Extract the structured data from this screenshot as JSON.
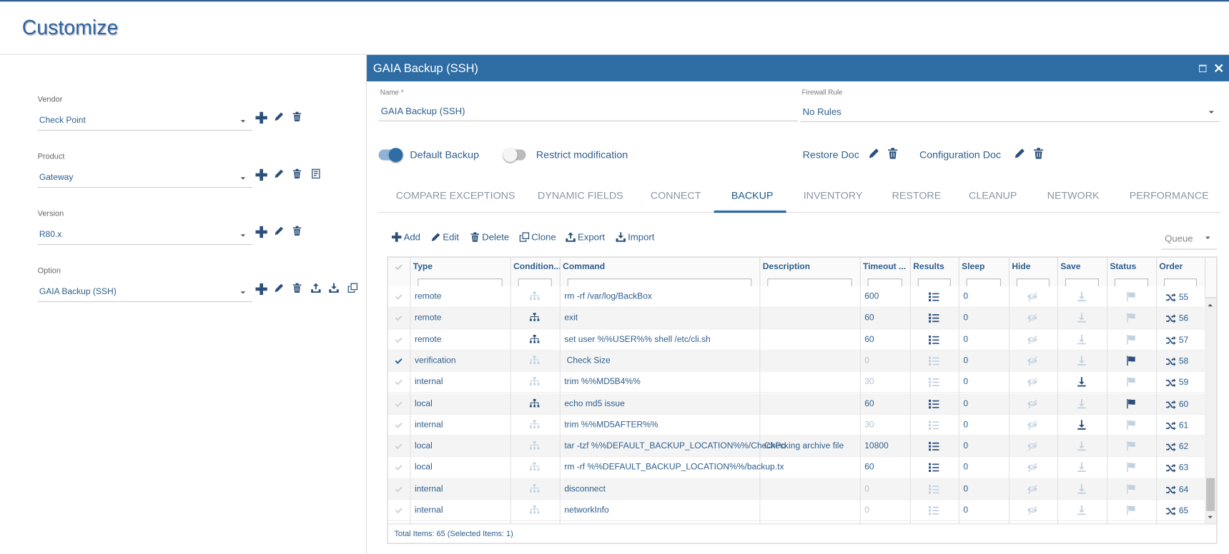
{
  "header": {
    "title": "Customize"
  },
  "sidebar": {
    "fields": [
      {
        "label": "Vendor",
        "value": "Check Point"
      },
      {
        "label": "Product",
        "value": "Gateway"
      },
      {
        "label": "Version",
        "value": "R80.x"
      },
      {
        "label": "Option",
        "value": "GAIA Backup (SSH)"
      }
    ]
  },
  "dialog": {
    "title": "GAIA Backup (SSH)",
    "name_label": "Name *",
    "name_value": "GAIA Backup (SSH)",
    "firewall_label": "Firewall Rule",
    "firewall_value": "No Rules",
    "toggles": [
      {
        "label": "Default Backup",
        "on": true
      },
      {
        "label": "Restrict modification",
        "on": false
      }
    ],
    "docs": [
      "Restore Doc",
      "Configuration Doc"
    ],
    "tabs": [
      "COMPARE EXCEPTIONS",
      "DYNAMIC FIELDS",
      "CONNECT",
      "BACKUP",
      "INVENTORY",
      "RESTORE",
      "CLEANUP",
      "NETWORK",
      "PERFORMANCE"
    ],
    "active_tab": 3,
    "toolbar": [
      "Add",
      "Edit",
      "Delete",
      "Clone",
      "Export",
      "Import"
    ],
    "queue": "Queue"
  },
  "table": {
    "columns": [
      "Type",
      "Condition...",
      "Command",
      "Description",
      "Timeout ...",
      "Results",
      "Sleep",
      "Hide",
      "Save",
      "Status",
      "Order"
    ],
    "rows": [
      {
        "checked": false,
        "type": "remote",
        "condition_active": false,
        "command": "rm -rf /var/log/BackBox",
        "description": "",
        "timeout": 600,
        "results_active": true,
        "sleep": 0,
        "save_active": false,
        "status_active": false,
        "order": 55
      },
      {
        "checked": false,
        "type": "remote",
        "condition_active": true,
        "command": "exit",
        "description": "",
        "timeout": 60,
        "results_active": true,
        "sleep": 0,
        "save_active": false,
        "status_active": false,
        "order": 56
      },
      {
        "checked": false,
        "type": "remote",
        "condition_active": true,
        "command": "set user %%USER%% shell /etc/cli.sh",
        "description": "",
        "timeout": 60,
        "results_active": true,
        "sleep": 0,
        "save_active": false,
        "status_active": false,
        "order": 57
      },
      {
        "checked": true,
        "type": "verification",
        "condition_active": false,
        "command": " Check Size",
        "description": "",
        "timeout": 0,
        "results_active": false,
        "sleep": 0,
        "save_active": false,
        "status_active": true,
        "order": 58
      },
      {
        "checked": false,
        "type": "internal",
        "condition_active": false,
        "command": "trim %%MD5B4%%",
        "description": "",
        "timeout": 30,
        "results_active": false,
        "sleep": 0,
        "save_active": true,
        "status_active": false,
        "order": 59
      },
      {
        "checked": false,
        "type": "local",
        "condition_active": true,
        "command": "echo md5 issue",
        "description": "",
        "timeout": 60,
        "results_active": true,
        "sleep": 0,
        "save_active": false,
        "status_active": true,
        "order": 60
      },
      {
        "checked": false,
        "type": "internal",
        "condition_active": false,
        "command": "trim %%MD5AFTER%%",
        "description": "",
        "timeout": 30,
        "results_active": false,
        "sleep": 0,
        "save_active": true,
        "status_active": false,
        "order": 61
      },
      {
        "checked": false,
        "type": "local",
        "condition_active": false,
        "command": "tar -tzf %%DEFAULT_BACKUP_LOCATION%%/CheckPo",
        "description": "Checking archive file",
        "timeout": 10800,
        "results_active": true,
        "sleep": 0,
        "save_active": false,
        "status_active": false,
        "order": 62
      },
      {
        "checked": false,
        "type": "local",
        "condition_active": false,
        "command": "rm -rf %%DEFAULT_BACKUP_LOCATION%%/backup.tx",
        "description": "",
        "timeout": 60,
        "results_active": true,
        "sleep": 0,
        "save_active": false,
        "status_active": false,
        "order": 63
      },
      {
        "checked": false,
        "type": "internal",
        "condition_active": false,
        "command": "disconnect",
        "description": "",
        "timeout": 0,
        "results_active": false,
        "sleep": 0,
        "save_active": false,
        "status_active": false,
        "order": 64
      },
      {
        "checked": false,
        "type": "internal",
        "condition_active": false,
        "command": "networkInfo",
        "description": "",
        "timeout": 0,
        "results_active": false,
        "sleep": 0,
        "save_active": false,
        "status_active": false,
        "order": 65
      }
    ],
    "footer": "Total Items: 65 (Selected Items: 1)"
  }
}
